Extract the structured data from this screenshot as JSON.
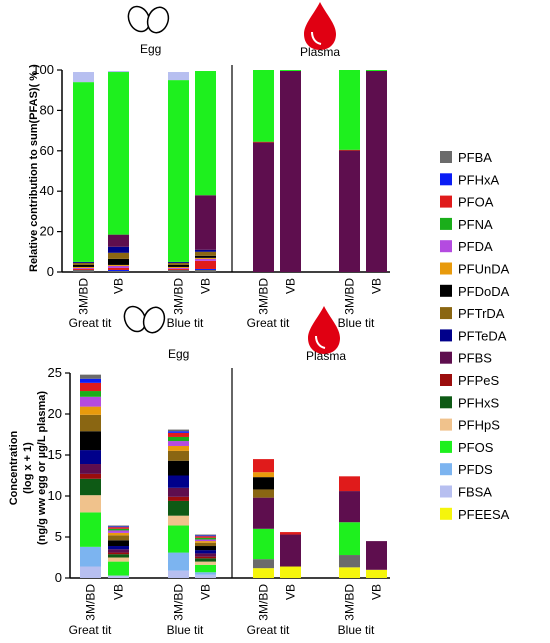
{
  "colors": {
    "PFBA": "#6b6b6b",
    "PFHxA": "#0a1df5",
    "PFOA": "#e01b1b",
    "PFNA": "#1aae1a",
    "PFDA": "#b44be0",
    "PFUnDA": "#e89a0c",
    "PFDoDA": "#000000",
    "PFTrDA": "#8a6612",
    "PFTeDA": "#00008b",
    "PFBS": "#5e0e4e",
    "PFPeS": "#9b0d0d",
    "PFHxS": "#0e5a15",
    "PFHpS": "#f0c28c",
    "PFOS": "#1ef01e",
    "PFDS": "#7cb4f0",
    "FBSA": "#b7bff0",
    "PFEESA": "#f5f50c"
  },
  "legend": {
    "items": [
      "PFBA",
      "PFHxA",
      "PFOA",
      "PFNA",
      "PFDA",
      "PFUnDA",
      "PFDoDA",
      "PFTrDA",
      "PFTeDA",
      "PFBS",
      "PFPeS",
      "PFHxS",
      "PFHpS",
      "PFOS",
      "PFDS",
      "FBSA",
      "PFEESA"
    ]
  },
  "chart_data": [
    {
      "type": "bar",
      "stacked": true,
      "panels": [
        "Egg",
        "Plasma"
      ],
      "ylabel": "Relative contribution to  sum(PFAS)( % )",
      "ylim": [
        0,
        100
      ],
      "yticks": [
        0,
        20,
        40,
        60,
        80,
        100
      ],
      "categories": [
        "3M/BD",
        "VB",
        "3M/BD",
        "VB",
        "3M/BD",
        "VB",
        "3M/BD",
        "VB"
      ],
      "groups": [
        "Great tit",
        "Blue tit",
        "Great tit",
        "Blue tit"
      ],
      "panel_of_bar": [
        "Egg",
        "Egg",
        "Egg",
        "Egg",
        "Plasma",
        "Plasma",
        "Plasma",
        "Plasma"
      ],
      "group_of_bar": [
        "Great tit",
        "Great tit",
        "Blue tit",
        "Blue tit",
        "Great tit",
        "Great tit",
        "Blue tit",
        "Blue tit"
      ],
      "series": [
        {
          "name": "PFEESA",
          "values": [
            0,
            0,
            0,
            0,
            0,
            0,
            0,
            0
          ]
        },
        {
          "name": "FBSA",
          "values": [
            0,
            0,
            0,
            0,
            0,
            0,
            0,
            0
          ]
        },
        {
          "name": "PFDS",
          "values": [
            0,
            0,
            0,
            0,
            0,
            0,
            0,
            0
          ]
        },
        {
          "name": "PFBA",
          "values": [
            1,
            0.5,
            1,
            1,
            0,
            0,
            0,
            0
          ]
        },
        {
          "name": "PFHxA",
          "values": [
            0,
            0.5,
            0,
            0.5,
            0,
            0,
            0,
            0
          ]
        },
        {
          "name": "PFOA",
          "values": [
            0.5,
            1,
            0.5,
            4,
            0,
            0,
            0,
            0
          ]
        },
        {
          "name": "PFDA",
          "values": [
            0.5,
            1,
            0.5,
            1,
            0,
            0,
            0,
            0
          ]
        },
        {
          "name": "PFUnDA",
          "values": [
            0.5,
            0.5,
            0.5,
            0.5,
            0,
            0,
            0,
            0
          ]
        },
        {
          "name": "PFDoDA",
          "values": [
            1,
            3,
            1,
            1,
            0,
            0,
            0,
            0
          ]
        },
        {
          "name": "PFTrDA",
          "values": [
            1,
            3,
            1,
            2,
            0,
            0,
            0,
            0
          ]
        },
        {
          "name": "PFTeDA",
          "values": [
            0.5,
            3,
            0.5,
            1,
            0,
            0,
            0,
            0
          ]
        },
        {
          "name": "PFBS",
          "values": [
            0,
            6,
            0,
            27,
            64,
            99.5,
            60,
            99.5
          ]
        },
        {
          "name": "PFPeS",
          "values": [
            0,
            0,
            0,
            0,
            0.5,
            0,
            0.5,
            0
          ]
        },
        {
          "name": "PFHxS",
          "values": [
            0,
            0,
            0,
            0,
            0,
            0,
            0,
            0
          ]
        },
        {
          "name": "PFHpS",
          "values": [
            0,
            0,
            0,
            0,
            0,
            0,
            0,
            0
          ]
        },
        {
          "name": "PFNA",
          "values": [
            0,
            0,
            0,
            0,
            0,
            0,
            0,
            0
          ]
        },
        {
          "name": "PFOS",
          "values": [
            89,
            80.5,
            90,
            61.5,
            35.5,
            0.5,
            39.5,
            0.5
          ]
        },
        {
          "name": "PFDS",
          "values": [
            0,
            0,
            0,
            0,
            0,
            0,
            0,
            0
          ]
        },
        {
          "name": "FBSA",
          "values": [
            5,
            0.5,
            4,
            0,
            0,
            0,
            0,
            0
          ]
        }
      ]
    },
    {
      "type": "bar",
      "stacked": true,
      "panels": [
        "Egg",
        "Plasma"
      ],
      "ylabel_lines": [
        "Concentration",
        "(log x + 1)",
        "(ng/g ww egg or µg/L plasma)"
      ],
      "ylim": [
        0,
        25
      ],
      "yticks": [
        0,
        5,
        10,
        15,
        20,
        25
      ],
      "categories": [
        "3M/BD",
        "VB",
        "3M/BD",
        "VB",
        "3M/BD",
        "VB",
        "3M/BD",
        "VB"
      ],
      "groups": [
        "Great tit",
        "Blue tit",
        "Great tit",
        "Blue tit"
      ],
      "panel_of_bar": [
        "Egg",
        "Egg",
        "Egg",
        "Egg",
        "Plasma",
        "Plasma",
        "Plasma",
        "Plasma"
      ],
      "group_of_bar": [
        "Great tit",
        "Great tit",
        "Blue tit",
        "Blue tit",
        "Great tit",
        "Great tit",
        "Blue tit",
        "Blue tit"
      ],
      "series": [
        {
          "name": "PFEESA",
          "values": [
            0,
            0,
            0,
            0,
            1.2,
            1.4,
            1.3,
            1.0
          ]
        },
        {
          "name": "FBSA",
          "values": [
            1.4,
            0.3,
            0.9,
            0.4,
            0,
            0,
            0,
            0
          ]
        },
        {
          "name": "PFDS",
          "values": [
            2.4,
            0,
            2.2,
            0.3,
            0,
            0,
            0,
            0
          ]
        },
        {
          "name": "PFOS",
          "values": [
            4.2,
            1.7,
            3.3,
            0.9,
            0,
            0,
            0,
            0
          ]
        },
        {
          "name": "PFHpS",
          "values": [
            2.1,
            0.5,
            1.2,
            0.4,
            0,
            0,
            0,
            0
          ]
        },
        {
          "name": "PFHxS",
          "values": [
            2.0,
            0.4,
            1.8,
            0.4,
            0,
            0,
            0,
            0
          ]
        },
        {
          "name": "PFPeS",
          "values": [
            0.6,
            0.2,
            0.5,
            0.2,
            0,
            0,
            0,
            0
          ]
        },
        {
          "name": "PFBS",
          "values": [
            1.2,
            0.4,
            1.1,
            0.4,
            0,
            0,
            0,
            0
          ]
        },
        {
          "name": "PFTeDA",
          "values": [
            1.7,
            0.4,
            1.5,
            0.4,
            0,
            0,
            0,
            0
          ]
        },
        {
          "name": "PFDoDA",
          "values": [
            2.3,
            0.7,
            1.8,
            0.5,
            0,
            0,
            0,
            0
          ]
        },
        {
          "name": "PFTrDA",
          "values": [
            2.0,
            0.6,
            1.2,
            0.4,
            0,
            0,
            0,
            0
          ]
        },
        {
          "name": "PFUnDA",
          "values": [
            1.0,
            0.3,
            0.6,
            0.2,
            0,
            0,
            0,
            0
          ]
        },
        {
          "name": "PFDA",
          "values": [
            1.2,
            0.3,
            0.6,
            0.2,
            0,
            0,
            0,
            0
          ]
        },
        {
          "name": "PFNA",
          "values": [
            0.7,
            0.2,
            0.5,
            0.2,
            0,
            0,
            0,
            0
          ]
        },
        {
          "name": "PFOA",
          "values": [
            1.0,
            0.2,
            0.5,
            0.2,
            0,
            0,
            0,
            0
          ]
        },
        {
          "name": "PFHxA",
          "values": [
            0.5,
            0.1,
            0.2,
            0.1,
            0,
            0,
            0,
            0
          ]
        },
        {
          "name": "PFBA",
          "values": [
            0.5,
            0.1,
            0.2,
            0.1,
            1.1,
            0,
            1.5,
            0
          ]
        },
        {
          "name": "PFOS",
          "values": [
            0,
            0,
            0,
            0,
            3.7,
            0,
            4.0,
            0
          ]
        },
        {
          "name": "PFBS",
          "values": [
            0,
            0,
            0,
            0,
            3.8,
            3.9,
            3.8,
            3.5
          ]
        },
        {
          "name": "PFTrDA",
          "values": [
            0,
            0,
            0,
            0,
            1.0,
            0,
            0,
            0
          ]
        },
        {
          "name": "PFDoDA",
          "values": [
            0,
            0,
            0,
            0,
            1.5,
            0,
            0,
            0
          ]
        },
        {
          "name": "PFUnDA",
          "values": [
            0,
            0,
            0,
            0,
            0.6,
            0,
            0,
            0
          ]
        },
        {
          "name": "PFOA",
          "values": [
            0,
            0,
            0,
            0,
            1.6,
            0.3,
            1.8,
            0
          ]
        }
      ]
    }
  ]
}
